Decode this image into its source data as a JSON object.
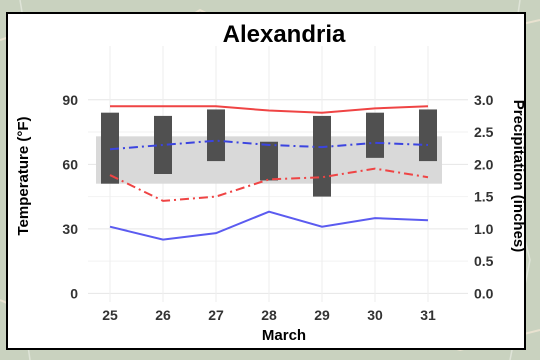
{
  "chart_data": {
    "type": "line",
    "title": "Alexandria",
    "xlabel": "March",
    "ylabel_left": "Temperature (°F)",
    "ylabel_right": "Precipitation (inches)",
    "categories": [
      "25",
      "26",
      "27",
      "28",
      "29",
      "30",
      "31"
    ],
    "y_left_ticks": [
      "0",
      "30",
      "60",
      "90"
    ],
    "y_right_ticks": [
      "0.0",
      "0.5",
      "1.0",
      "1.5",
      "2.0",
      "2.5",
      "3.0"
    ],
    "ylim_left": [
      -4,
      115
    ],
    "ylim_right": [
      -0.133,
      3.833
    ],
    "grid": true,
    "series": [
      {
        "values": [
          87,
          87,
          87,
          85,
          84,
          86,
          87
        ],
        "color": "#ef4444",
        "style": "solid"
      },
      {
        "values": [
          55,
          43,
          45,
          53,
          54,
          58,
          54
        ],
        "color": "#ef4444",
        "style": "dashdot"
      },
      {
        "values": [
          67,
          69,
          71,
          69,
          68,
          70,
          69
        ],
        "color": "#3b44e0",
        "style": "dashdot"
      },
      {
        "values": [
          31,
          25,
          28,
          38,
          31,
          35,
          34
        ],
        "color": "#5b5bf0",
        "style": "solid"
      }
    ],
    "normal_band": {
      "lower": [
        51,
        51,
        51,
        51,
        51,
        51,
        51
      ],
      "upper": [
        73,
        73,
        73,
        73,
        73,
        73,
        73
      ],
      "color": "#d9d9d9"
    },
    "precip_bars": [
      {
        "low": 1.7,
        "high": 2.8
      },
      {
        "low": 1.85,
        "high": 2.75
      },
      {
        "low": 2.05,
        "high": 2.85
      },
      {
        "low": 1.75,
        "high": 2.35
      },
      {
        "low": 1.5,
        "high": 2.75
      },
      {
        "low": 2.1,
        "high": 2.8
      },
      {
        "low": 2.05,
        "high": 2.85
      }
    ],
    "bar_color": "#505050"
  }
}
